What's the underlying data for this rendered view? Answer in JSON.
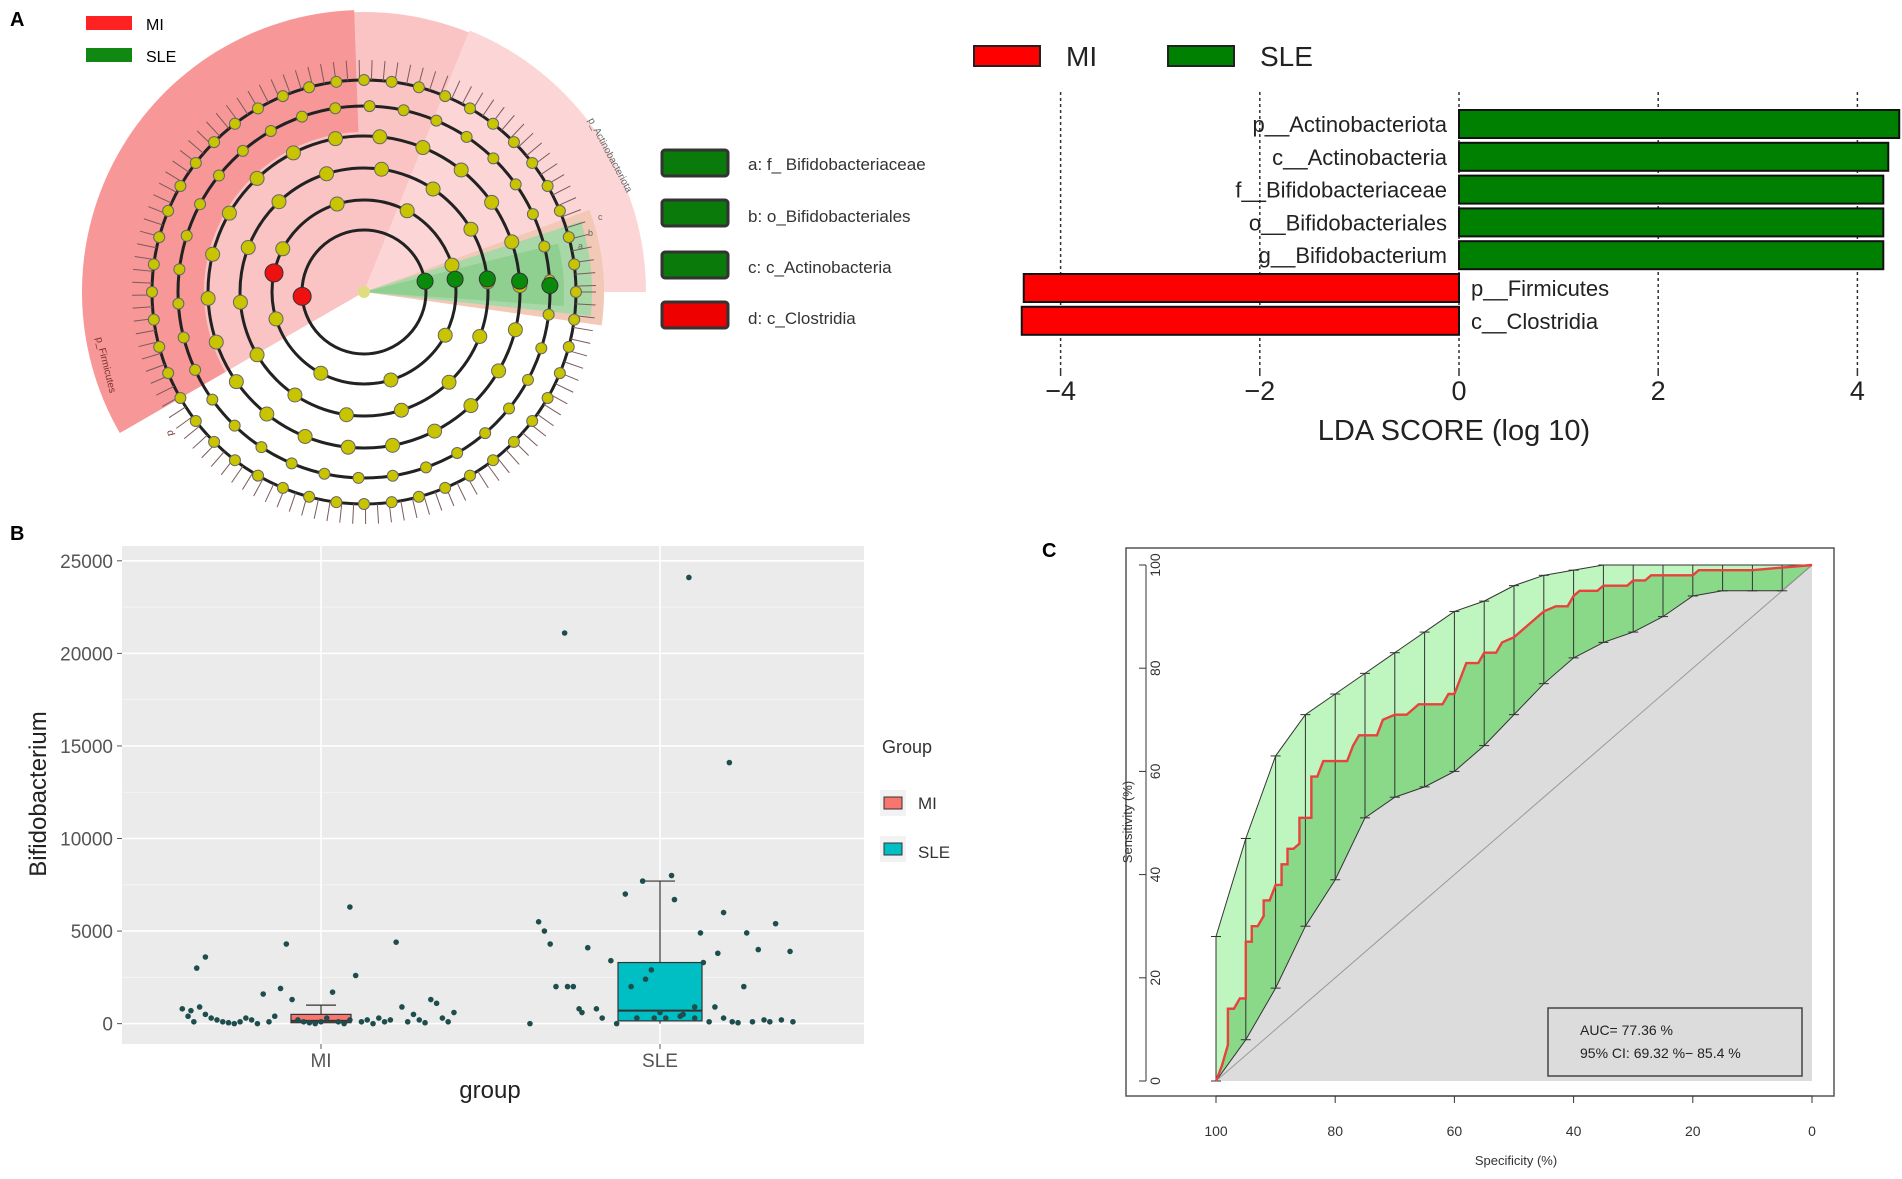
{
  "panels": {
    "a": "A",
    "b": "B",
    "c": "C"
  },
  "cladogram": {
    "legend": [
      {
        "label": "MI",
        "color": "#ff0000"
      },
      {
        "label": "SLE",
        "color": "#008000"
      }
    ],
    "sector_labels": [
      "p_Actinobacteriota",
      "c",
      "b",
      "a",
      "p_Firmicutes",
      "d"
    ],
    "key": [
      {
        "label": "a: f_ Bifidobacteriaceae",
        "color": "#008000"
      },
      {
        "label": "b: o_Bifidobacteriales",
        "color": "#008000"
      },
      {
        "label": "c: c_Actinobacteria",
        "color": "#008000"
      },
      {
        "label": "d: c_Clostridia",
        "color": "#ff0000"
      }
    ]
  },
  "colors": {
    "mi": "#ff0000",
    "sle": "#008000",
    "box_mi": "#f8766d",
    "box_sle": "#00bfc4",
    "roc": "#e8423e",
    "ci_fill": "#b8f5b8",
    "ci_fill_dark": "#5fc25f"
  },
  "chart_data": [
    {
      "type": "bar",
      "orientation": "horizontal",
      "legend": [
        {
          "label": "MI",
          "color": "#ff0000"
        },
        {
          "label": "SLE",
          "color": "#008000"
        }
      ],
      "categories": [
        "p__Actinobacteriota",
        "c__Actinobacteria",
        "f__Bifidobacteriaceae",
        "o__Bifidobacteriales",
        "g__Bifidobacterium",
        "p__Firmicutes",
        "c__Clostridia"
      ],
      "values": [
        4.42,
        4.31,
        4.26,
        4.26,
        4.26,
        -4.37,
        -4.39
      ],
      "groups": [
        "SLE",
        "SLE",
        "SLE",
        "SLE",
        "SLE",
        "MI",
        "MI"
      ],
      "xlabel": "LDA SCORE (log 10)",
      "xticks": [
        -4,
        -2,
        0,
        2,
        4
      ],
      "xtick_labels": [
        "−4",
        "−2",
        "0",
        "2",
        "4"
      ],
      "xlim": [
        -4.8,
        4.45
      ],
      "grid": "dotted vertical lines at ticks"
    },
    {
      "type": "scatter",
      "subtype": "boxplot with jittered points",
      "xlabel": "group",
      "ylabel": "Bifidobacterium",
      "categories": [
        "MI",
        "SLE"
      ],
      "yticks": [
        0,
        5000,
        10000,
        15000,
        20000,
        25000
      ],
      "ylim": [
        -1100,
        25800
      ],
      "legend_title": "Group",
      "legend": [
        {
          "label": "MI",
          "color": "#f8766d"
        },
        {
          "label": "SLE",
          "color": "#00bfc4"
        }
      ],
      "boxes": [
        {
          "group": "MI",
          "min": 0,
          "q1": 50,
          "median": 150,
          "q3": 500,
          "max": 1000
        },
        {
          "group": "SLE",
          "min": 0,
          "q1": 150,
          "median": 700,
          "q3": 3300,
          "max": 7700
        }
      ],
      "points": {
        "MI": [
          [
            -0.4,
            3600
          ],
          [
            -0.43,
            3000
          ],
          [
            -0.48,
            800
          ],
          [
            -0.45,
            700
          ],
          [
            -0.42,
            900
          ],
          [
            -0.4,
            500
          ],
          [
            -0.38,
            300
          ],
          [
            -0.36,
            200
          ],
          [
            -0.34,
            100
          ],
          [
            -0.32,
            50
          ],
          [
            -0.3,
            0
          ],
          [
            -0.28,
            100
          ],
          [
            -0.26,
            300
          ],
          [
            -0.24,
            200
          ],
          [
            -0.22,
            0
          ],
          [
            -0.2,
            1600
          ],
          [
            -0.18,
            100
          ],
          [
            -0.16,
            400
          ],
          [
            -0.14,
            1900
          ],
          [
            -0.12,
            4300
          ],
          [
            -0.1,
            1300
          ],
          [
            -0.08,
            200
          ],
          [
            -0.06,
            100
          ],
          [
            -0.04,
            50
          ],
          [
            -0.02,
            0
          ],
          [
            0,
            100
          ],
          [
            0.02,
            300
          ],
          [
            0.04,
            1700
          ],
          [
            0.06,
            100
          ],
          [
            0.08,
            0
          ],
          [
            0.1,
            200
          ],
          [
            0.12,
            2600
          ],
          [
            0.1,
            6300
          ],
          [
            0.14,
            100
          ],
          [
            0.16,
            200
          ],
          [
            0.18,
            0
          ],
          [
            0.2,
            300
          ],
          [
            0.22,
            100
          ],
          [
            0.24,
            200
          ],
          [
            0.26,
            4400
          ],
          [
            0.28,
            900
          ],
          [
            0.3,
            100
          ],
          [
            0.32,
            500
          ],
          [
            0.34,
            200
          ],
          [
            0.36,
            50
          ],
          [
            0.38,
            1300
          ],
          [
            0.4,
            1100
          ],
          [
            0.42,
            300
          ],
          [
            0.44,
            100
          ],
          [
            -0.44,
            100
          ],
          [
            -0.46,
            400
          ],
          [
            0.46,
            600
          ]
        ],
        "SLE": [
          [
            -0.45,
            0
          ],
          [
            -0.42,
            5500
          ],
          [
            -0.4,
            5000
          ],
          [
            -0.38,
            4300
          ],
          [
            -0.36,
            2000
          ],
          [
            -0.33,
            21100
          ],
          [
            -0.32,
            2000
          ],
          [
            -0.3,
            2000
          ],
          [
            -0.28,
            800
          ],
          [
            -0.27,
            600
          ],
          [
            -0.25,
            4100
          ],
          [
            -0.22,
            800
          ],
          [
            -0.2,
            300
          ],
          [
            -0.17,
            3400
          ],
          [
            -0.15,
            0
          ],
          [
            -0.12,
            7000
          ],
          [
            -0.1,
            2000
          ],
          [
            -0.06,
            7700
          ],
          [
            -0.05,
            2400
          ],
          [
            -0.03,
            2900
          ],
          [
            -0.02,
            300
          ],
          [
            0,
            600
          ],
          [
            0.02,
            300
          ],
          [
            0.04,
            8000
          ],
          [
            0.05,
            6700
          ],
          [
            0.07,
            400
          ],
          [
            0.08,
            500
          ],
          [
            0.1,
            24100
          ],
          [
            0.12,
            300
          ],
          [
            0.14,
            4900
          ],
          [
            0.15,
            3300
          ],
          [
            0.17,
            100
          ],
          [
            0.19,
            900
          ],
          [
            0.2,
            3800
          ],
          [
            0.22,
            6000
          ],
          [
            0.22,
            300
          ],
          [
            0.24,
            14100
          ],
          [
            0.25,
            100
          ],
          [
            0.27,
            50
          ],
          [
            0.29,
            2000
          ],
          [
            0.3,
            4900
          ],
          [
            0.32,
            100
          ],
          [
            0.34,
            4000
          ],
          [
            0.36,
            200
          ],
          [
            0.38,
            100
          ],
          [
            0.4,
            5400
          ],
          [
            0.42,
            200
          ],
          [
            0.45,
            3900
          ],
          [
            0.46,
            100
          ],
          [
            -0.08,
            300
          ],
          [
            0.12,
            900
          ]
        ]
      }
    },
    {
      "type": "line",
      "subtype": "ROC curve with 95% CI band",
      "xlabel": "Specificity (%)",
      "ylabel": "Sensitivity (%)",
      "xlim": [
        100,
        0
      ],
      "ylim": [
        0,
        100
      ],
      "xticks": [
        100,
        80,
        60,
        40,
        20,
        0
      ],
      "yticks": [
        0,
        20,
        40,
        60,
        80,
        100
      ],
      "auc_text": "AUC= 77.36 %",
      "ci_text": "95% CI: 69.32 %− 85.4 %",
      "roc": [
        [
          100,
          0
        ],
        [
          99,
          3
        ],
        [
          98,
          7
        ],
        [
          98,
          14
        ],
        [
          97,
          14
        ],
        [
          96,
          16
        ],
        [
          95,
          16
        ],
        [
          95,
          27
        ],
        [
          94,
          27
        ],
        [
          94,
          30
        ],
        [
          93,
          30
        ],
        [
          92,
          32
        ],
        [
          92,
          35
        ],
        [
          91,
          35
        ],
        [
          90,
          38
        ],
        [
          89,
          38
        ],
        [
          89,
          42
        ],
        [
          88,
          42
        ],
        [
          88,
          45
        ],
        [
          87,
          45
        ],
        [
          86,
          46
        ],
        [
          86,
          51
        ],
        [
          84,
          51
        ],
        [
          84,
          59
        ],
        [
          83,
          59
        ],
        [
          82,
          62
        ],
        [
          78,
          62
        ],
        [
          77,
          65
        ],
        [
          76,
          67
        ],
        [
          73,
          67
        ],
        [
          72,
          70
        ],
        [
          70,
          71
        ],
        [
          68,
          71
        ],
        [
          67,
          72
        ],
        [
          66,
          73
        ],
        [
          62,
          73
        ],
        [
          61,
          75
        ],
        [
          60,
          75
        ],
        [
          59,
          78
        ],
        [
          58,
          81
        ],
        [
          56,
          81
        ],
        [
          55,
          83
        ],
        [
          53,
          83
        ],
        [
          52,
          85
        ],
        [
          50,
          86
        ],
        [
          49,
          87
        ],
        [
          47,
          89
        ],
        [
          45,
          91
        ],
        [
          43,
          92
        ],
        [
          41,
          92
        ],
        [
          40,
          94
        ],
        [
          39,
          95
        ],
        [
          36,
          95
        ],
        [
          35,
          96
        ],
        [
          31,
          96
        ],
        [
          30,
          97
        ],
        [
          28,
          97
        ],
        [
          27,
          98
        ],
        [
          20,
          98
        ],
        [
          19,
          99
        ],
        [
          10,
          99
        ],
        [
          0,
          100
        ]
      ],
      "ci_upper": [
        [
          100,
          28
        ],
        [
          95,
          47
        ],
        [
          90,
          63
        ],
        [
          85,
          71
        ],
        [
          80,
          75
        ],
        [
          75,
          79
        ],
        [
          70,
          83
        ],
        [
          65,
          87
        ],
        [
          60,
          91
        ],
        [
          55,
          93
        ],
        [
          50,
          96
        ],
        [
          45,
          98
        ],
        [
          40,
          99
        ],
        [
          35,
          100
        ],
        [
          0,
          100
        ]
      ],
      "ci_lower": [
        [
          100,
          0
        ],
        [
          95,
          8
        ],
        [
          90,
          18
        ],
        [
          85,
          30
        ],
        [
          80,
          39
        ],
        [
          75,
          51
        ],
        [
          70,
          55
        ],
        [
          65,
          57
        ],
        [
          60,
          60
        ],
        [
          55,
          65
        ],
        [
          50,
          71
        ],
        [
          45,
          77
        ],
        [
          40,
          82
        ],
        [
          35,
          85
        ],
        [
          30,
          87
        ],
        [
          25,
          90
        ],
        [
          20,
          94
        ],
        [
          15,
          95
        ],
        [
          10,
          95
        ],
        [
          5,
          95
        ],
        [
          0,
          100
        ]
      ],
      "ci_x": [
        100,
        95,
        90,
        85,
        80,
        75,
        70,
        65,
        60,
        55,
        50,
        45,
        40,
        35,
        30,
        25,
        20,
        15,
        10,
        5
      ]
    }
  ]
}
